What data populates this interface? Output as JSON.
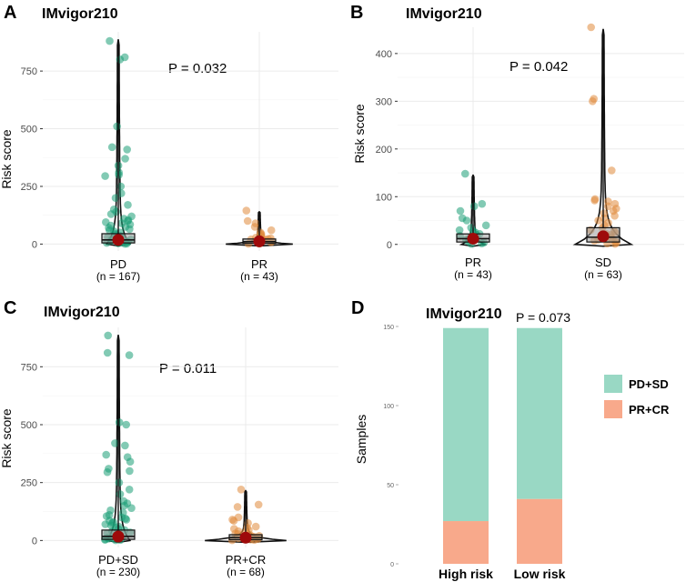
{
  "figure": {
    "panels": [
      {
        "letter": "A",
        "title": "IMvigor210",
        "pvalue": "P = 0.032"
      },
      {
        "letter": "B",
        "title": "IMvigor210",
        "pvalue": "P = 0.042"
      },
      {
        "letter": "C",
        "title": "IMvigor210",
        "pvalue": "P = 0.011"
      },
      {
        "letter": "D",
        "title": "IMvigor210",
        "pvalue": "P = 0.073"
      }
    ]
  },
  "colors": {
    "green": "#1b9e77",
    "orange": "#e08a3c",
    "mean": "#9e0a0a",
    "grid": "#ebebeb",
    "bar_green": "#99d8c4",
    "bar_orange": "#f8a98b"
  },
  "chart_data": [
    {
      "type": "violin-box-jitter",
      "title": "IMvigor210",
      "ylabel": "Risk score",
      "xlabel": "",
      "ylim": [
        -30,
        920
      ],
      "yticks": [
        0,
        250,
        500,
        750
      ],
      "pvalue": "P = 0.032",
      "groups": [
        {
          "name": "PD",
          "n_label": "(n = 167)",
          "color": "#1b9e77",
          "min": 0,
          "q1": 5,
          "median": 18,
          "q3": 45,
          "max": 885,
          "mean": 18,
          "points": [
            880,
            810,
            800,
            510,
            420,
            410,
            370,
            340,
            310,
            300,
            295,
            250,
            220,
            200,
            170,
            150,
            140,
            130,
            120,
            110,
            105,
            100,
            95,
            90,
            85,
            80,
            75,
            70,
            65,
            60,
            55,
            50,
            45,
            40,
            35,
            30,
            25,
            20,
            18,
            15,
            12,
            10,
            8,
            5,
            3,
            2,
            1
          ]
        },
        {
          "name": "PR",
          "n_label": "(n = 43)",
          "color": "#e08a3c",
          "min": 0,
          "q1": 3,
          "median": 10,
          "q3": 22,
          "max": 140,
          "mean": 12,
          "points": [
            145,
            100,
            90,
            75,
            60,
            50,
            45,
            40,
            35,
            30,
            28,
            25,
            22,
            20,
            18,
            15,
            12,
            10,
            8,
            6,
            4,
            2,
            1
          ]
        }
      ]
    },
    {
      "type": "violin-box-jitter",
      "title": "IMvigor210",
      "ylabel": "Risk score",
      "xlabel": "",
      "ylim": [
        -10,
        455
      ],
      "yticks": [
        0,
        100,
        200,
        300,
        400
      ],
      "pvalue": "P = 0.042",
      "groups": [
        {
          "name": "PR",
          "n_label": "(n = 43)",
          "color": "#1b9e77",
          "min": 0,
          "q1": 5,
          "median": 12,
          "q3": 22,
          "max": 145,
          "mean": 12,
          "points": [
            148,
            85,
            80,
            70,
            55,
            50,
            40,
            35,
            30,
            28,
            25,
            22,
            20,
            18,
            15,
            12,
            10,
            8,
            6,
            4,
            2,
            1
          ]
        },
        {
          "name": "SD",
          "n_label": "(n = 63)",
          "color": "#e08a3c",
          "min": 0,
          "q1": 5,
          "median": 15,
          "q3": 35,
          "max": 450,
          "mean": 17,
          "points": [
            455,
            305,
            300,
            155,
            95,
            92,
            90,
            85,
            80,
            75,
            70,
            65,
            60,
            55,
            50,
            45,
            40,
            35,
            30,
            28,
            25,
            22,
            20,
            18,
            15,
            12,
            10,
            8,
            6,
            4,
            2,
            1
          ]
        }
      ]
    },
    {
      "type": "violin-box-jitter",
      "title": "IMvigor210",
      "ylabel": "Risk score",
      "xlabel": "",
      "ylim": [
        -30,
        920
      ],
      "yticks": [
        0,
        250,
        500,
        750
      ],
      "pvalue": "P = 0.011",
      "groups": [
        {
          "name": "PD+SD",
          "n_label": "(n = 230)",
          "color": "#1b9e77",
          "min": 0,
          "q1": 5,
          "median": 18,
          "q3": 45,
          "max": 885,
          "mean": 17,
          "points": [
            885,
            810,
            800,
            510,
            500,
            420,
            410,
            370,
            360,
            340,
            310,
            300,
            295,
            250,
            220,
            200,
            170,
            160,
            150,
            140,
            130,
            120,
            110,
            105,
            100,
            95,
            90,
            85,
            80,
            75,
            70,
            65,
            60,
            55,
            50,
            45,
            40,
            35,
            30,
            25,
            20,
            18,
            15,
            12,
            10,
            8,
            5,
            3,
            2,
            1
          ]
        },
        {
          "name": "PR+CR",
          "n_label": "(n = 68)",
          "color": "#e08a3c",
          "min": 0,
          "q1": 3,
          "median": 12,
          "q3": 25,
          "max": 215,
          "mean": 12,
          "points": [
            220,
            155,
            145,
            100,
            90,
            85,
            75,
            60,
            55,
            50,
            45,
            40,
            35,
            30,
            28,
            25,
            22,
            20,
            18,
            15,
            12,
            10,
            8,
            6,
            4,
            2,
            1
          ]
        }
      ]
    },
    {
      "type": "bar",
      "stacked": true,
      "title": "IMvigor210",
      "ylabel": "Samples",
      "xlabel": "",
      "ylim": [
        0,
        150
      ],
      "yticks": [
        0,
        50,
        100,
        150
      ],
      "pvalue": "P = 0.073",
      "categories": [
        "High risk",
        "Low risk"
      ],
      "series": [
        {
          "name": "PR+CR",
          "color": "#f8a98b",
          "values": [
            27,
            41
          ]
        },
        {
          "name": "PD+SD",
          "color": "#99d8c4",
          "values": [
            122,
            108
          ]
        }
      ],
      "legend_order": [
        "PD+SD",
        "PR+CR"
      ],
      "legend_position": "right"
    }
  ]
}
